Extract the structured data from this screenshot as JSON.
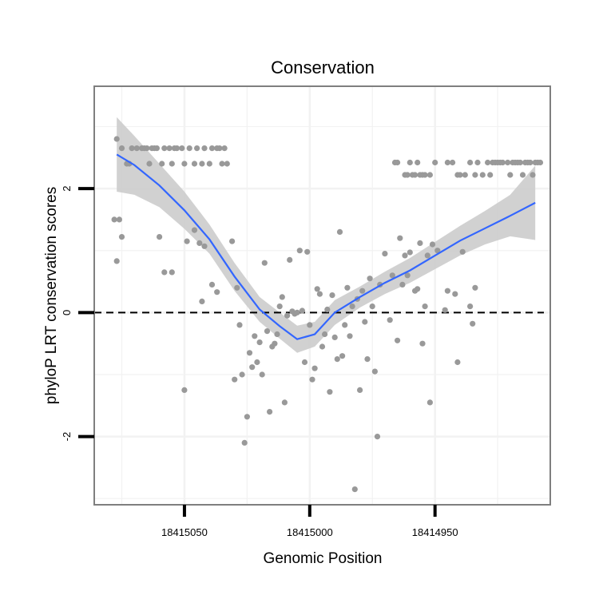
{
  "chart_data": {
    "type": "scatter",
    "title": "Conservation",
    "xlabel": "Genomic Position",
    "ylabel": "phyloP LRT conservation scores",
    "x_reversed": true,
    "xlim": [
      18415086,
      18414904
    ],
    "ylim": [
      -3.1,
      3.65
    ],
    "x_ticks": [
      18415050,
      18415000,
      18414950
    ],
    "y_ticks": [
      -2,
      0,
      2
    ],
    "y_tick_labels": [
      "-2",
      "0",
      "2"
    ],
    "grid": true,
    "reference_line": {
      "y": 0,
      "style": "dashed"
    },
    "colors": {
      "points": "#999999",
      "smooth": "#3366ff",
      "band": "#cccccc",
      "panel_border": "#7f7f7f",
      "grid": "#f2f2f2"
    },
    "series": [
      {
        "type": "points",
        "points": [
          [
            18415077,
            2.8
          ],
          [
            18415075,
            2.65
          ],
          [
            18415073,
            2.4
          ],
          [
            18415071,
            2.65
          ],
          [
            18415072,
            2.4
          ],
          [
            18415069,
            2.65
          ],
          [
            18415067,
            2.65
          ],
          [
            18415066,
            2.65
          ],
          [
            18415065,
            2.65
          ],
          [
            18415064,
            2.4
          ],
          [
            18415063,
            2.65
          ],
          [
            18415062,
            2.65
          ],
          [
            18415061,
            2.65
          ],
          [
            18415059,
            2.4
          ],
          [
            18415058,
            2.65
          ],
          [
            18415056,
            2.65
          ],
          [
            18415055,
            2.4
          ],
          [
            18415054,
            2.65
          ],
          [
            18415053,
            2.65
          ],
          [
            18415051,
            2.65
          ],
          [
            18415050,
            2.4
          ],
          [
            18415048,
            2.65
          ],
          [
            18415046,
            2.4
          ],
          [
            18415045,
            2.65
          ],
          [
            18415043,
            2.4
          ],
          [
            18415042,
            2.65
          ],
          [
            18415040,
            2.4
          ],
          [
            18415039,
            2.65
          ],
          [
            18415037,
            2.65
          ],
          [
            18415036,
            2.65
          ],
          [
            18415035,
            2.4
          ],
          [
            18415034,
            2.65
          ],
          [
            18415033,
            2.4
          ],
          [
            18415078,
            1.5
          ],
          [
            18415077,
            0.83
          ],
          [
            18415076,
            1.5
          ],
          [
            18415075,
            1.22
          ],
          [
            18415060,
            1.22
          ],
          [
            18415058,
            0.65
          ],
          [
            18415055,
            0.65
          ],
          [
            18415050,
            -1.25
          ],
          [
            18415049,
            1.15
          ],
          [
            18415046,
            1.33
          ],
          [
            18415044,
            1.12
          ],
          [
            18415043,
            0.18
          ],
          [
            18415042,
            1.07
          ],
          [
            18415039,
            0.45
          ],
          [
            18415037,
            0.33
          ],
          [
            18415031,
            1.15
          ],
          [
            18415030,
            -1.08
          ],
          [
            18415029,
            0.4
          ],
          [
            18415028,
            -0.2
          ],
          [
            18415027,
            -1.0
          ],
          [
            18415026,
            -2.1
          ],
          [
            18415025,
            -1.68
          ],
          [
            18415024,
            -0.65
          ],
          [
            18415023,
            -0.88
          ],
          [
            18415022,
            -0.38
          ],
          [
            18415021,
            -0.8
          ],
          [
            18415020,
            -0.48
          ],
          [
            18415019,
            -1.0
          ],
          [
            18415018,
            0.8
          ],
          [
            18415017,
            -0.3
          ],
          [
            18415016,
            -1.6
          ],
          [
            18415015,
            -0.55
          ],
          [
            18415014,
            -0.5
          ],
          [
            18415013,
            -0.35
          ],
          [
            18415012,
            0.1
          ],
          [
            18415011,
            0.25
          ],
          [
            18415010,
            -1.45
          ],
          [
            18415009,
            -0.05
          ],
          [
            18415008,
            0.85
          ],
          [
            18415007,
            0.02
          ],
          [
            18415006,
            -0.02
          ],
          [
            18415005,
            0.0
          ],
          [
            18415004,
            1.0
          ],
          [
            18415003,
            0.03
          ],
          [
            18415002,
            -0.8
          ],
          [
            18415001,
            0.98
          ],
          [
            18415000,
            -0.2
          ],
          [
            18414999,
            -1.08
          ],
          [
            18414998,
            -0.9
          ],
          [
            18414997,
            0.38
          ],
          [
            18414996,
            0.3
          ],
          [
            18414995,
            -0.55
          ],
          [
            18414994,
            -0.35
          ],
          [
            18414993,
            0.05
          ],
          [
            18414992,
            -1.28
          ],
          [
            18414991,
            0.28
          ],
          [
            18414990,
            -0.4
          ],
          [
            18414989,
            -0.75
          ],
          [
            18414988,
            1.3
          ],
          [
            18414987,
            -0.7
          ],
          [
            18414986,
            -0.2
          ],
          [
            18414985,
            0.4
          ],
          [
            18414984,
            -0.38
          ],
          [
            18414983,
            0.1
          ],
          [
            18414982,
            -2.85
          ],
          [
            18414981,
            0.22
          ],
          [
            18414980,
            -1.25
          ],
          [
            18414979,
            0.35
          ],
          [
            18414978,
            -0.15
          ],
          [
            18414977,
            -0.75
          ],
          [
            18414976,
            0.55
          ],
          [
            18414975,
            0.1
          ],
          [
            18414974,
            -0.95
          ],
          [
            18414973,
            -2.0
          ],
          [
            18414972,
            0.45
          ],
          [
            18414970,
            0.95
          ],
          [
            18414968,
            -0.12
          ],
          [
            18414967,
            0.6
          ],
          [
            18414965,
            -0.45
          ],
          [
            18414964,
            1.2
          ],
          [
            18414963,
            0.45
          ],
          [
            18414962,
            0.92
          ],
          [
            18414961,
            0.6
          ],
          [
            18414960,
            0.97
          ],
          [
            18414958,
            0.35
          ],
          [
            18414957,
            0.38
          ],
          [
            18414956,
            1.12
          ],
          [
            18414955,
            -0.5
          ],
          [
            18414954,
            0.1
          ],
          [
            18414953,
            0.92
          ],
          [
            18414952,
            -1.45
          ],
          [
            18414951,
            1.1
          ],
          [
            18414949,
            1.0
          ],
          [
            18414946,
            0.04
          ],
          [
            18414945,
            0.35
          ],
          [
            18414942,
            0.3
          ],
          [
            18414941,
            -0.8
          ],
          [
            18414939,
            0.98
          ],
          [
            18414936,
            0.1
          ],
          [
            18414935,
            -0.18
          ],
          [
            18414934,
            0.4
          ],
          [
            18414966,
            2.42
          ],
          [
            18414965,
            2.42
          ],
          [
            18414962,
            2.22
          ],
          [
            18414961,
            2.22
          ],
          [
            18414960,
            2.42
          ],
          [
            18414959,
            2.22
          ],
          [
            18414958,
            2.22
          ],
          [
            18414957,
            2.42
          ],
          [
            18414956,
            2.22
          ],
          [
            18414955,
            2.22
          ],
          [
            18414954,
            2.22
          ],
          [
            18414952,
            2.22
          ],
          [
            18414950,
            2.42
          ],
          [
            18414945,
            2.42
          ],
          [
            18414943,
            2.42
          ],
          [
            18414941,
            2.22
          ],
          [
            18414940,
            2.22
          ],
          [
            18414938,
            2.22
          ],
          [
            18414936,
            2.42
          ],
          [
            18414934,
            2.22
          ],
          [
            18414933,
            2.42
          ],
          [
            18414931,
            2.22
          ],
          [
            18414929,
            2.42
          ],
          [
            18414928,
            2.22
          ],
          [
            18414927,
            2.42
          ],
          [
            18414926,
            2.42
          ],
          [
            18414925,
            2.42
          ],
          [
            18414924,
            2.42
          ],
          [
            18414923,
            2.42
          ],
          [
            18414921,
            2.42
          ],
          [
            18414920,
            2.22
          ],
          [
            18414919,
            2.42
          ],
          [
            18414918,
            2.42
          ],
          [
            18414917,
            2.42
          ],
          [
            18414916,
            2.42
          ],
          [
            18414915,
            2.22
          ],
          [
            18414914,
            2.42
          ],
          [
            18414913,
            2.42
          ],
          [
            18414912,
            2.42
          ],
          [
            18414911,
            2.22
          ],
          [
            18414910,
            2.42
          ],
          [
            18414909,
            2.42
          ],
          [
            18414908,
            2.42
          ]
        ]
      },
      {
        "type": "loess",
        "x": [
          18415077,
          18415070,
          18415060,
          18415050,
          18415040,
          18415030,
          18415020,
          18415012,
          18415005,
          18414998,
          18414990,
          18414980,
          18414970,
          18414960,
          18414950,
          18414940,
          18414930,
          18414920,
          18414910
        ],
        "y": [
          2.55,
          2.38,
          2.05,
          1.65,
          1.18,
          0.58,
          0.05,
          -0.22,
          -0.43,
          -0.35,
          0.0,
          0.25,
          0.48,
          0.68,
          0.92,
          1.16,
          1.36,
          1.56,
          1.77
        ],
        "ci_lower": [
          1.95,
          1.9,
          1.7,
          1.35,
          0.95,
          0.35,
          -0.15,
          -0.42,
          -0.65,
          -0.55,
          -0.2,
          0.08,
          0.3,
          0.48,
          0.7,
          0.92,
          1.1,
          1.23,
          1.17
        ],
        "ci_upper": [
          3.15,
          2.85,
          2.4,
          1.95,
          1.42,
          0.8,
          0.25,
          0.0,
          -0.21,
          -0.15,
          0.2,
          0.42,
          0.66,
          0.88,
          1.14,
          1.4,
          1.64,
          1.9,
          2.37
        ]
      }
    ]
  }
}
